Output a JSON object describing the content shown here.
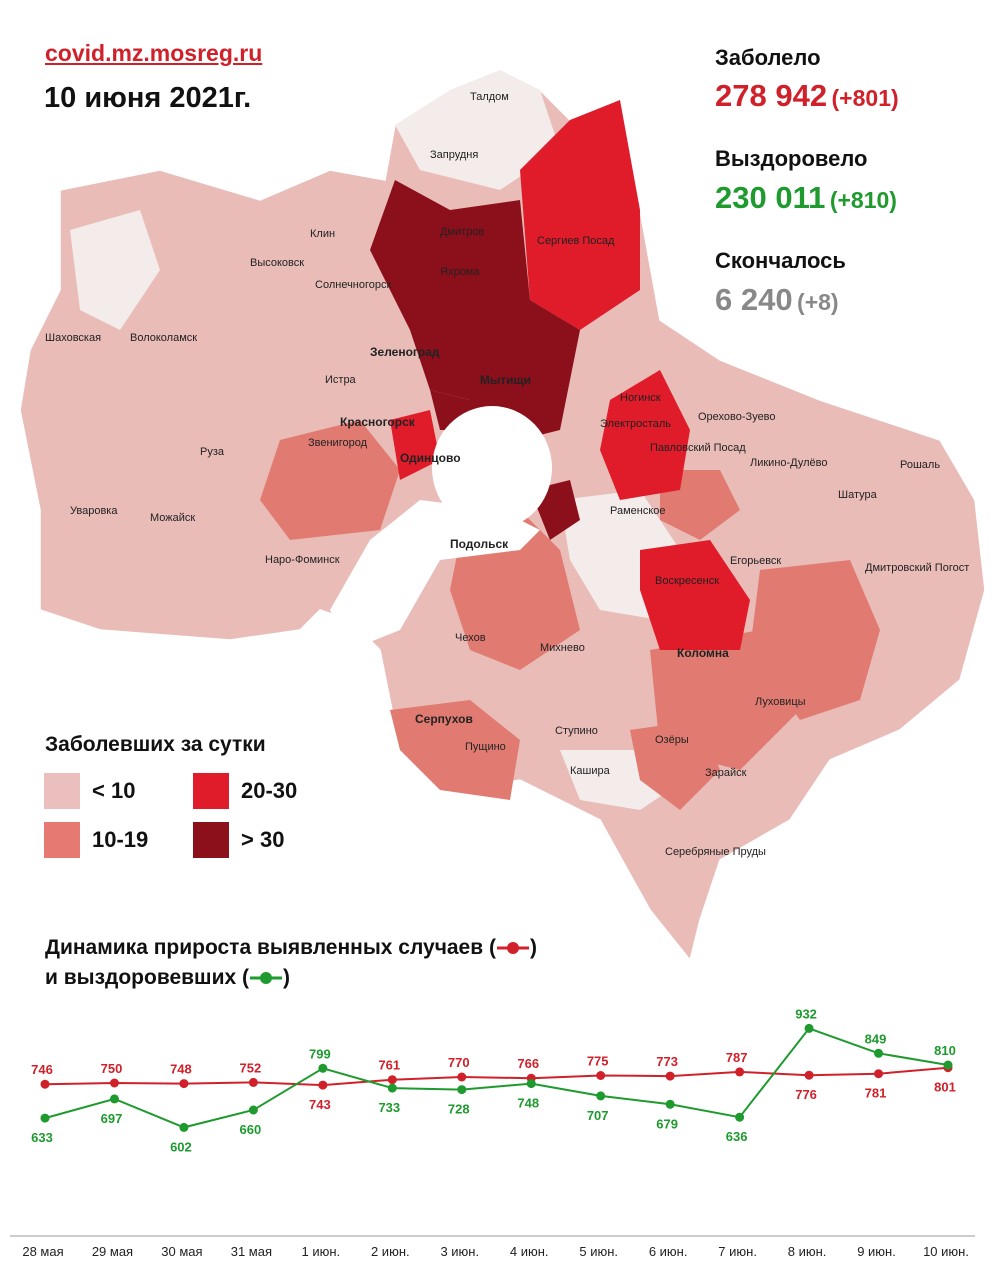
{
  "header": {
    "site": "covid.mz.mosreg.ru",
    "date": "10 июня 2021г."
  },
  "stats": {
    "infected_label": "Заболело",
    "infected_value": "278 942",
    "infected_delta": "(+801)",
    "recovered_label": "Выздоровело",
    "recovered_value": "230 011",
    "recovered_delta": "(+810)",
    "died_label": "Скончалось",
    "died_value": "6 240",
    "died_delta": "(+8)",
    "colors": {
      "infected": "#d0212a",
      "recovered": "#1e9a2e",
      "died": "#888888"
    }
  },
  "map": {
    "cities": [
      "Талдом",
      "Запрудня",
      "Дмитров",
      "Яхрома",
      "Сергиев Посад",
      "Клин",
      "Высоковск",
      "Солнечногорск",
      "Шаховская",
      "Волоколамск",
      "Зеленоград",
      "Истра",
      "Мытищи",
      "Красногорск",
      "Ногинск",
      "Электросталь",
      "Орехово-Зуево",
      "Звенигород",
      "Одинцово",
      "Павловский Посад",
      "Ликино-Дулёво",
      "Рошаль",
      "Руза",
      "Шатура",
      "Уваровка",
      "Можайск",
      "Раменское",
      "Наро-Фоминск",
      "Подольск",
      "Егорьевск",
      "Воскресенск",
      "Дмитровский Погост",
      "Чехов",
      "Михнево",
      "Коломна",
      "Луховицы",
      "Серпухов",
      "Пущино",
      "Ступино",
      "Озёры",
      "Кашира",
      "Зарайск",
      "Серебряные Пруды"
    ]
  },
  "legend": {
    "title": "Заболевших за сутки",
    "items": [
      {
        "label": "< 10",
        "color": "#ebbfbd"
      },
      {
        "label": "10-19",
        "color": "#e67a73"
      },
      {
        "label": "20-30",
        "color": "#e01b2a"
      },
      {
        "label": "> 30",
        "color": "#8c0f1c"
      }
    ]
  },
  "chart_title": {
    "line1": "Динамика прироста выявленных случаев (",
    "line1_end": ")",
    "line2": "и выздоровевших (",
    "line2_end": ")"
  },
  "chart_data": {
    "type": "line",
    "categories": [
      "28 мая",
      "29 мая",
      "30 мая",
      "31 мая",
      "1 июн.",
      "2 июн.",
      "3 июн.",
      "4 июн.",
      "5 июн.",
      "6 июн.",
      "7 июн.",
      "8 июн.",
      "9 июн.",
      "10 июн."
    ],
    "series": [
      {
        "color": "#d0212a",
        "values": [
          746,
          750,
          748,
          752,
          743,
          761,
          770,
          766,
          775,
          773,
          787,
          776,
          781,
          801
        ]
      },
      {
        "color": "#1e9a2e",
        "values": [
          633,
          697,
          602,
          660,
          799,
          733,
          728,
          748,
          707,
          679,
          636,
          932,
          849,
          810
        ]
      }
    ],
    "ylim": [
      560,
      960
    ],
    "legend": "inline-title"
  }
}
